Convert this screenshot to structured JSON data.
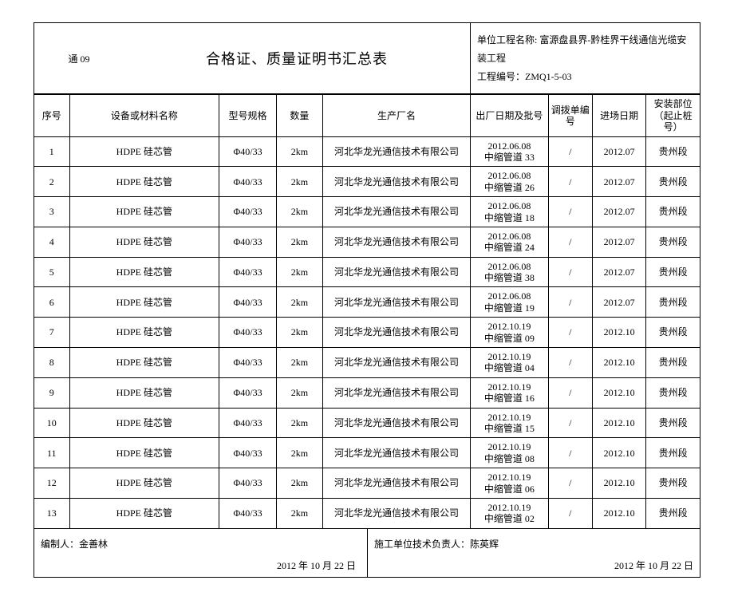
{
  "header": {
    "doc_code": "通 09",
    "title": "合格证、质量证明书汇总表",
    "project_label": "单位工程名称:",
    "project_name": "富源盘县界-黔桂界干线通信光缆安装工程",
    "project_no_label": "工程编号：",
    "project_no": "ZMQ1-5-03"
  },
  "columns": {
    "seq": "序号",
    "name": "设备或材料名称",
    "spec": "型号规格",
    "qty": "数量",
    "mfg": "生产厂名",
    "batch": "出厂日期及批号",
    "alloc": "调拨单编号",
    "date": "进场日期",
    "pos": "安装部位（起止桩号）"
  },
  "rows": [
    {
      "seq": "1",
      "name": "HDPE 硅芯管",
      "spec": "Φ40/33",
      "qty": "2km",
      "mfg": "河北华龙光通信技术有限公司",
      "batch_date": "2012.06.08",
      "batch_no": "中缩管道 33",
      "alloc": "/",
      "date": "2012.07",
      "pos": "贵州段"
    },
    {
      "seq": "2",
      "name": "HDPE 硅芯管",
      "spec": "Φ40/33",
      "qty": "2km",
      "mfg": "河北华龙光通信技术有限公司",
      "batch_date": "2012.06.08",
      "batch_no": "中缩管道 26",
      "alloc": "/",
      "date": "2012.07",
      "pos": "贵州段"
    },
    {
      "seq": "3",
      "name": "HDPE 硅芯管",
      "spec": "Φ40/33",
      "qty": "2km",
      "mfg": "河北华龙光通信技术有限公司",
      "batch_date": "2012.06.08",
      "batch_no": "中缩管道 18",
      "alloc": "/",
      "date": "2012.07",
      "pos": "贵州段"
    },
    {
      "seq": "4",
      "name": "HDPE 硅芯管",
      "spec": "Φ40/33",
      "qty": "2km",
      "mfg": "河北华龙光通信技术有限公司",
      "batch_date": "2012.06.08",
      "batch_no": "中缩管道 24",
      "alloc": "/",
      "date": "2012.07",
      "pos": "贵州段"
    },
    {
      "seq": "5",
      "name": "HDPE 硅芯管",
      "spec": "Φ40/33",
      "qty": "2km",
      "mfg": "河北华龙光通信技术有限公司",
      "batch_date": "2012.06.08",
      "batch_no": "中缩管道 38",
      "alloc": "/",
      "date": "2012.07",
      "pos": "贵州段"
    },
    {
      "seq": "6",
      "name": "HDPE 硅芯管",
      "spec": "Φ40/33",
      "qty": "2km",
      "mfg": "河北华龙光通信技术有限公司",
      "batch_date": "2012.06.08",
      "batch_no": "中缩管道 19",
      "alloc": "/",
      "date": "2012.07",
      "pos": "贵州段"
    },
    {
      "seq": "7",
      "name": "HDPE 硅芯管",
      "spec": "Φ40/33",
      "qty": "2km",
      "mfg": "河北华龙光通信技术有限公司",
      "batch_date": "2012.10.19",
      "batch_no": "中缩管道 09",
      "alloc": "/",
      "date": "2012.10",
      "pos": "贵州段"
    },
    {
      "seq": "8",
      "name": "HDPE 硅芯管",
      "spec": "Φ40/33",
      "qty": "2km",
      "mfg": "河北华龙光通信技术有限公司",
      "batch_date": "2012.10.19",
      "batch_no": "中缩管道 04",
      "alloc": "/",
      "date": "2012.10",
      "pos": "贵州段"
    },
    {
      "seq": "9",
      "name": "HDPE 硅芯管",
      "spec": "Φ40/33",
      "qty": "2km",
      "mfg": "河北华龙光通信技术有限公司",
      "batch_date": "2012.10.19",
      "batch_no": "中缩管道 16",
      "alloc": "/",
      "date": "2012.10",
      "pos": "贵州段"
    },
    {
      "seq": "10",
      "name": "HDPE 硅芯管",
      "spec": "Φ40/33",
      "qty": "2km",
      "mfg": "河北华龙光通信技术有限公司",
      "batch_date": "2012.10.19",
      "batch_no": "中缩管道 15",
      "alloc": "/",
      "date": "2012.10",
      "pos": "贵州段"
    },
    {
      "seq": "11",
      "name": "HDPE 硅芯管",
      "spec": "Φ40/33",
      "qty": "2km",
      "mfg": "河北华龙光通信技术有限公司",
      "batch_date": "2012.10.19",
      "batch_no": "中缩管道 08",
      "alloc": "/",
      "date": "2012.10",
      "pos": "贵州段"
    },
    {
      "seq": "12",
      "name": "HDPE 硅芯管",
      "spec": "Φ40/33",
      "qty": "2km",
      "mfg": "河北华龙光通信技术有限公司",
      "batch_date": "2012.10.19",
      "batch_no": "中缩管道 06",
      "alloc": "/",
      "date": "2012.10",
      "pos": "贵州段"
    },
    {
      "seq": "13",
      "name": "HDPE 硅芯管",
      "spec": "Φ40/33",
      "qty": "2km",
      "mfg": "河北华龙光通信技术有限公司",
      "batch_date": "2012.10.19",
      "batch_no": "中缩管道 02",
      "alloc": "/",
      "date": "2012.10",
      "pos": "贵州段"
    }
  ],
  "footer": {
    "compiler_label": "编制人：",
    "compiler_name": "金善林",
    "left_date": "2012 年 10 月 22 日",
    "tech_label": "施工单位技术负责人：",
    "tech_name": "陈英辉",
    "right_date": "2012 年 10 月 22 日"
  }
}
